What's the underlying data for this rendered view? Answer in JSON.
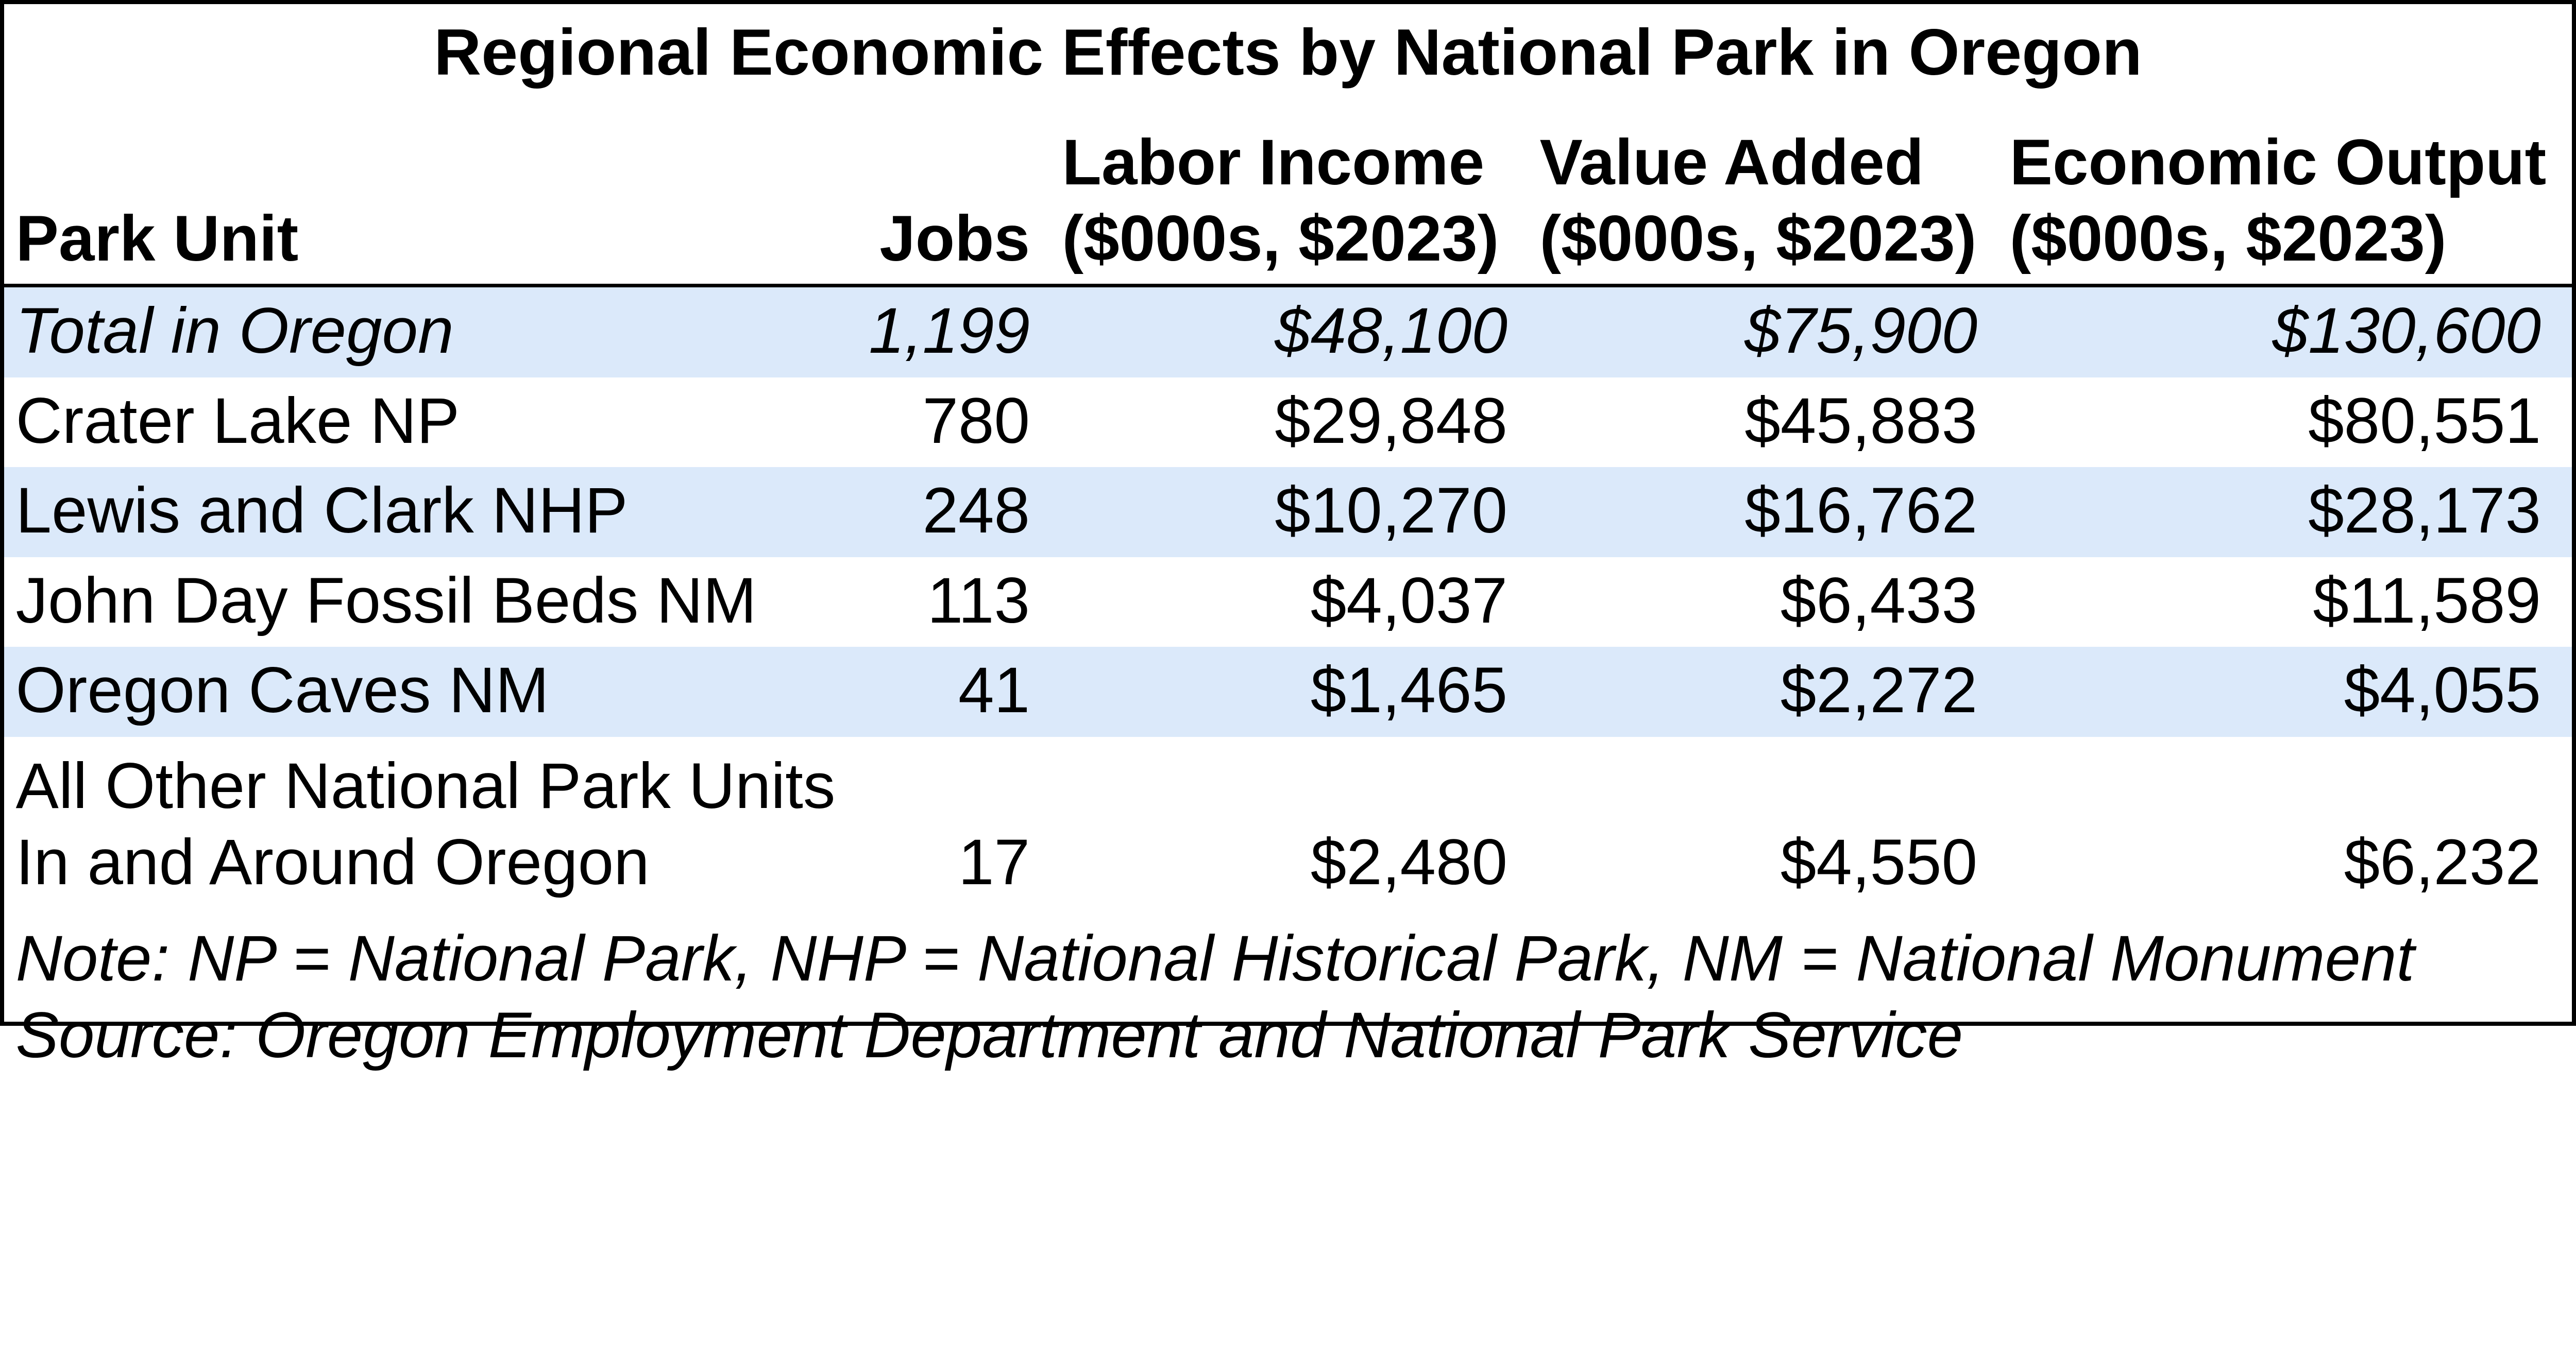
{
  "chart_data": {
    "type": "table",
    "title": "Regional Economic Effects by National Park in Oregon",
    "columns": [
      {
        "label": "Park Unit",
        "sublabel": ""
      },
      {
        "label": "Jobs",
        "sublabel": ""
      },
      {
        "label": "Labor Income",
        "sublabel": "($000s, $2023)"
      },
      {
        "label": "Value Added",
        "sublabel": "($000s, $2023)"
      },
      {
        "label": "Economic Output",
        "sublabel": "($000s, $2023)"
      }
    ],
    "rows": [
      {
        "park_unit": "Total in Oregon",
        "jobs": "1,199",
        "labor_income": "$48,100",
        "value_added": "$75,900",
        "economic_output": "$130,600",
        "emphasis": "total"
      },
      {
        "park_unit": "Crater Lake NP",
        "jobs": "780",
        "labor_income": "$29,848",
        "value_added": "$45,883",
        "economic_output": "$80,551"
      },
      {
        "park_unit": "Lewis and Clark NHP",
        "jobs": "248",
        "labor_income": "$10,270",
        "value_added": "$16,762",
        "economic_output": "$28,173"
      },
      {
        "park_unit": "John Day Fossil Beds NM",
        "jobs": "113",
        "labor_income": "$4,037",
        "value_added": "$6,433",
        "economic_output": "$11,589"
      },
      {
        "park_unit": "Oregon Caves NM",
        "jobs": "41",
        "labor_income": "$1,465",
        "value_added": "$2,272",
        "economic_output": "$4,055"
      },
      {
        "park_unit": "All Other National Park Units\nIn and Around Oregon",
        "jobs": "17",
        "labor_income": "$2,480",
        "value_added": "$4,550",
        "economic_output": "$6,232"
      }
    ],
    "note": "Note: NP = National Park, NHP = National Historical Park, NM =  National Monument",
    "source": "Source: Oregon Employment Department and National Park Service",
    "layout": {
      "legend_position": "none",
      "grid": "off",
      "highlighted_rows": "alternating, starting with first data row (Total in Oregon)"
    }
  },
  "colors": {
    "row_highlight": "#DBE9FA",
    "border": "#000000",
    "text": "#000000",
    "background": "#FFFFFF"
  }
}
